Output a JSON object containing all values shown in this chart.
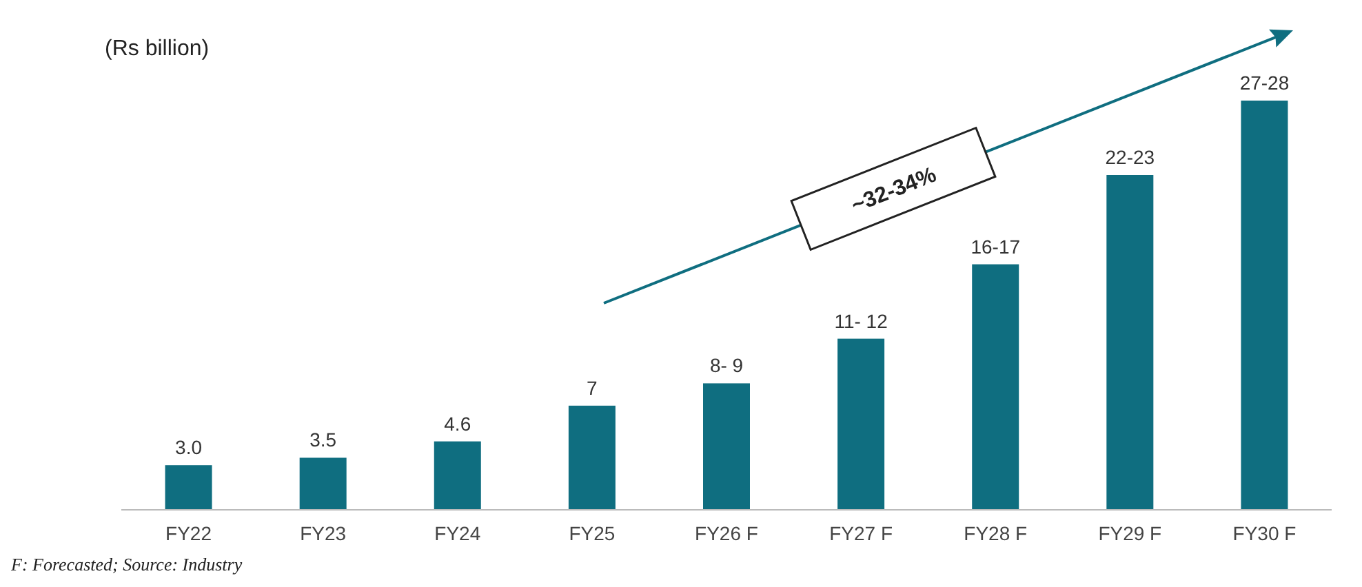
{
  "chart_data": {
    "type": "bar",
    "ylabel": "(Rs billion)",
    "categories": [
      "FY22",
      "FY23",
      "FY24",
      "FY25",
      "FY26 F",
      "FY27 F",
      "FY28 F",
      "FY29 F",
      "FY30 F"
    ],
    "values": [
      3.0,
      3.5,
      4.6,
      7,
      8.5,
      11.5,
      16.5,
      22.5,
      27.5
    ],
    "value_labels": [
      "3.0",
      "3.5",
      "4.6",
      "7",
      "8- 9",
      "11- 12",
      "16-17",
      "22-23",
      "27-28"
    ],
    "color": "#0f6e80",
    "relative": false,
    "annotations": [
      "~32-34%",
      "F: Forecasted; Source: Industry"
    ]
  }
}
